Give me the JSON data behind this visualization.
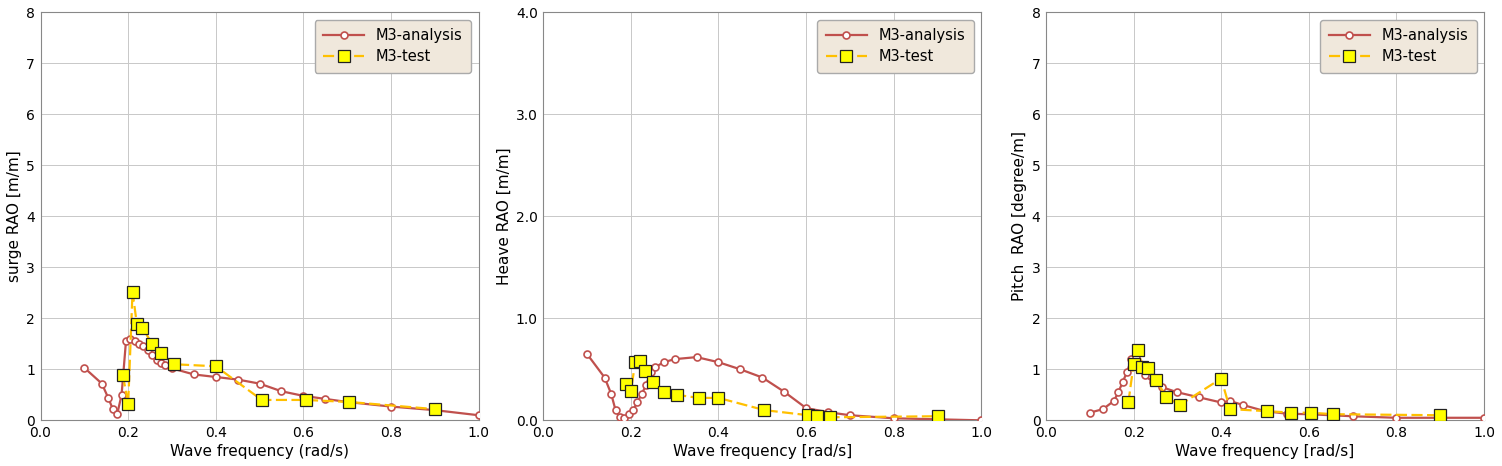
{
  "surge": {
    "analysis_x": [
      0.1,
      0.14,
      0.155,
      0.165,
      0.175,
      0.185,
      0.195,
      0.205,
      0.215,
      0.225,
      0.235,
      0.245,
      0.255,
      0.265,
      0.275,
      0.285,
      0.3,
      0.35,
      0.4,
      0.45,
      0.5,
      0.55,
      0.6,
      0.65,
      0.7,
      0.8,
      0.9,
      1.0
    ],
    "analysis_y": [
      1.03,
      0.72,
      0.43,
      0.22,
      0.12,
      0.5,
      1.55,
      1.6,
      1.55,
      1.5,
      1.45,
      1.38,
      1.28,
      1.18,
      1.12,
      1.08,
      1.02,
      0.9,
      0.85,
      0.8,
      0.72,
      0.57,
      0.48,
      0.42,
      0.36,
      0.27,
      0.2,
      0.1
    ],
    "test_x": [
      0.188,
      0.2,
      0.21,
      0.22,
      0.232,
      0.255,
      0.275,
      0.305,
      0.4,
      0.505,
      0.605,
      0.705,
      0.9
    ],
    "test_y": [
      0.88,
      0.32,
      2.52,
      1.88,
      1.82,
      1.5,
      1.32,
      1.1,
      1.06,
      0.4,
      0.4,
      0.36,
      0.22
    ],
    "ylabel": "surge RAO [m/m]",
    "xlabel": "Wave frequency (rad/s)",
    "ylim": [
      0,
      8
    ],
    "yticks": [
      0,
      1,
      2,
      3,
      4,
      5,
      6,
      7,
      8
    ]
  },
  "heave": {
    "analysis_x": [
      0.1,
      0.14,
      0.155,
      0.165,
      0.175,
      0.185,
      0.195,
      0.205,
      0.215,
      0.225,
      0.235,
      0.245,
      0.255,
      0.275,
      0.3,
      0.35,
      0.4,
      0.45,
      0.5,
      0.55,
      0.6,
      0.65,
      0.7,
      0.8,
      0.9,
      1.0
    ],
    "analysis_y": [
      0.65,
      0.42,
      0.26,
      0.1,
      0.03,
      0.02,
      0.06,
      0.1,
      0.18,
      0.26,
      0.35,
      0.47,
      0.52,
      0.57,
      0.6,
      0.62,
      0.57,
      0.5,
      0.42,
      0.28,
      0.12,
      0.08,
      0.05,
      0.02,
      0.01,
      0.0
    ],
    "test_x": [
      0.188,
      0.2,
      0.21,
      0.22,
      0.232,
      0.25,
      0.275,
      0.305,
      0.355,
      0.4,
      0.505,
      0.605,
      0.625,
      0.655,
      0.9
    ],
    "test_y": [
      0.36,
      0.29,
      0.57,
      0.58,
      0.48,
      0.38,
      0.28,
      0.25,
      0.22,
      0.22,
      0.1,
      0.05,
      0.04,
      0.03,
      0.04
    ],
    "ylabel": "Heave RAO [m/m]",
    "xlabel": "Wave frequency [rad/s]",
    "ylim": [
      0.0,
      4.0
    ],
    "yticks": [
      0.0,
      1.0,
      2.0,
      3.0,
      4.0
    ]
  },
  "pitch": {
    "analysis_x": [
      0.1,
      0.13,
      0.155,
      0.165,
      0.175,
      0.185,
      0.195,
      0.205,
      0.215,
      0.225,
      0.245,
      0.265,
      0.3,
      0.35,
      0.4,
      0.42,
      0.45,
      0.5,
      0.55,
      0.6,
      0.65,
      0.7,
      0.8,
      0.9,
      1.0
    ],
    "analysis_y": [
      0.15,
      0.22,
      0.38,
      0.55,
      0.75,
      0.95,
      1.2,
      1.25,
      1.1,
      0.88,
      0.75,
      0.65,
      0.55,
      0.45,
      0.35,
      0.38,
      0.3,
      0.18,
      0.13,
      0.12,
      0.1,
      0.08,
      0.05,
      0.05,
      0.05
    ],
    "test_x": [
      0.188,
      0.2,
      0.21,
      0.22,
      0.232,
      0.25,
      0.275,
      0.305,
      0.4,
      0.42,
      0.505,
      0.56,
      0.605,
      0.655,
      0.9
    ],
    "test_y": [
      0.35,
      1.1,
      1.38,
      1.05,
      1.02,
      0.8,
      0.46,
      0.3,
      0.82,
      0.22,
      0.18,
      0.15,
      0.15,
      0.12,
      0.1
    ],
    "ylabel": "Pitch  RAO [degree/m]",
    "xlabel": "Wave frequency [rad/s]",
    "ylim": [
      0,
      8
    ],
    "yticks": [
      0,
      1,
      2,
      3,
      4,
      5,
      6,
      7,
      8
    ]
  },
  "analysis_color": "#c0504d",
  "test_color": "#ffc000",
  "legend_bg": "#f0e8dc",
  "plot_bg": "#ffffff",
  "grid_color": "#c8c8c8",
  "analysis_label": "M3-analysis",
  "test_label": "M3-test",
  "xlim": [
    0.0,
    1.0
  ],
  "xticks": [
    0.0,
    0.2,
    0.4,
    0.6,
    0.8,
    1.0
  ]
}
